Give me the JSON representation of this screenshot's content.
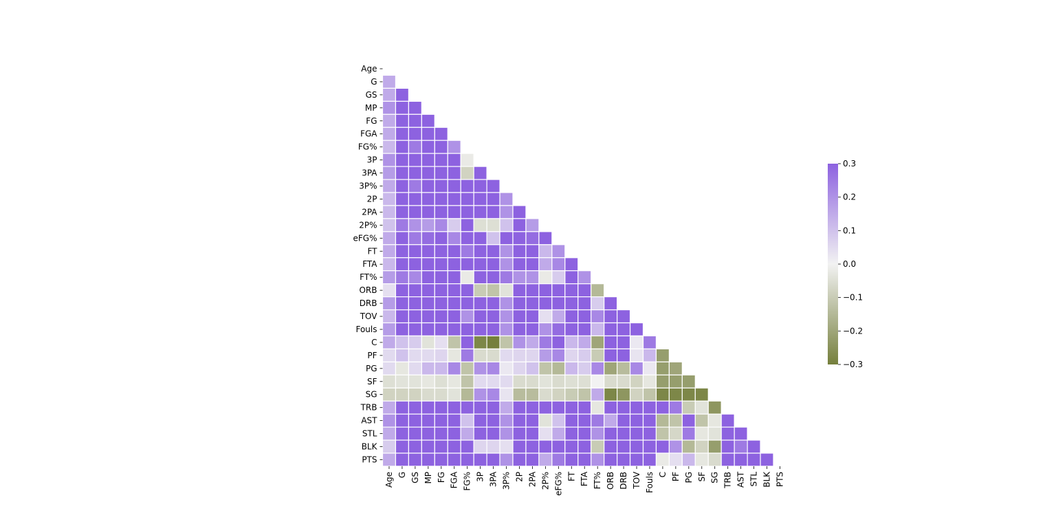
{
  "chart_data": {
    "type": "heatmap",
    "title": "",
    "mask": "upper-triangle",
    "labels": [
      "Age",
      "G",
      "GS",
      "MP",
      "FG",
      "FGA",
      "FG%",
      "3P",
      "3PA",
      "3P%",
      "2P",
      "2PA",
      "2P%",
      "eFG%",
      "FT",
      "FTA",
      "FT%",
      "ORB",
      "DRB",
      "TOV",
      "Fouls",
      "C",
      "PF",
      "PG",
      "SF",
      "SG",
      "TRB",
      "AST",
      "STL",
      "BLK",
      "PTS"
    ],
    "vmin": -0.3,
    "vmax": 0.3,
    "colormap": {
      "low": "#757f3c",
      "mid": "#f2f2f2",
      "high": "#8d62e0"
    },
    "colorbar": {
      "ticks": [
        "0.3",
        "0.2",
        "0.1",
        "0.0",
        "−0.1",
        "−0.2",
        "−0.3"
      ],
      "tick_values": [
        0.3,
        0.2,
        0.1,
        0.0,
        -0.1,
        -0.2,
        -0.3
      ]
    },
    "matrix": [
      [],
      [
        0.15
      ],
      [
        0.15,
        0.9
      ],
      [
        0.2,
        0.85,
        0.95
      ],
      [
        0.15,
        0.8,
        0.9,
        0.95
      ],
      [
        0.15,
        0.8,
        0.9,
        0.95,
        0.98
      ],
      [
        0.12,
        0.4,
        0.25,
        0.3,
        0.35,
        0.2
      ],
      [
        0.2,
        0.5,
        0.5,
        0.55,
        0.5,
        0.55,
        -0.02
      ],
      [
        0.18,
        0.5,
        0.5,
        0.55,
        0.5,
        0.55,
        -0.08,
        0.95
      ],
      [
        0.15,
        0.35,
        0.25,
        0.32,
        0.33,
        0.35,
        0.4,
        0.4,
        0.35
      ],
      [
        0.12,
        0.75,
        0.85,
        0.9,
        0.95,
        0.93,
        0.4,
        0.4,
        0.4,
        0.2
      ],
      [
        0.12,
        0.75,
        0.85,
        0.9,
        0.94,
        0.95,
        0.3,
        0.4,
        0.4,
        0.2,
        0.98
      ],
      [
        0.1,
        0.25,
        0.2,
        0.18,
        0.22,
        0.08,
        0.6,
        -0.05,
        -0.05,
        0.1,
        0.3,
        0.18
      ],
      [
        0.15,
        0.35,
        0.25,
        0.28,
        0.32,
        0.22,
        0.6,
        0.3,
        0.1,
        0.4,
        0.35,
        0.28,
        0.5
      ],
      [
        0.15,
        0.65,
        0.7,
        0.75,
        0.8,
        0.8,
        0.25,
        0.35,
        0.35,
        0.2,
        0.8,
        0.8,
        0.12,
        0.2
      ],
      [
        0.12,
        0.6,
        0.7,
        0.75,
        0.8,
        0.8,
        0.3,
        0.32,
        0.32,
        0.2,
        0.8,
        0.8,
        0.15,
        0.22,
        0.95
      ],
      [
        0.18,
        0.25,
        0.22,
        0.32,
        0.32,
        0.35,
        -0.02,
        0.4,
        0.4,
        0.25,
        0.2,
        0.2,
        -0.02,
        0.08,
        0.4,
        0.2
      ],
      [
        0.04,
        0.4,
        0.45,
        0.4,
        0.45,
        0.38,
        0.5,
        -0.1,
        -0.12,
        -0.04,
        0.55,
        0.55,
        0.4,
        0.3,
        0.4,
        0.45,
        -0.15
      ],
      [
        0.18,
        0.55,
        0.65,
        0.65,
        0.7,
        0.65,
        0.5,
        0.35,
        0.35,
        0.2,
        0.7,
        0.7,
        0.3,
        0.3,
        0.65,
        0.7,
        0.08,
        0.85
      ],
      [
        0.12,
        0.55,
        0.65,
        0.65,
        0.75,
        0.75,
        0.2,
        0.4,
        0.4,
        0.2,
        0.75,
        0.75,
        0.04,
        0.15,
        0.7,
        0.7,
        0.22,
        0.4,
        0.7
      ],
      [
        0.18,
        0.6,
        0.65,
        0.65,
        0.7,
        0.65,
        0.4,
        0.35,
        0.35,
        0.2,
        0.7,
        0.65,
        0.2,
        0.28,
        0.65,
        0.65,
        0.12,
        0.5,
        0.65,
        0.7
      ],
      [
        0.15,
        0.1,
        0.08,
        -0.04,
        0.04,
        -0.12,
        0.4,
        -0.28,
        -0.3,
        -0.12,
        0.2,
        0.15,
        0.25,
        0.3,
        0.12,
        0.15,
        -0.2,
        0.6,
        0.55,
        0.02,
        0.25
      ],
      [
        0.05,
        0.1,
        0.05,
        0.05,
        0.06,
        -0.03,
        0.25,
        -0.06,
        -0.06,
        0.05,
        0.06,
        0.06,
        0.18,
        0.22,
        0.06,
        0.08,
        -0.1,
        0.3,
        0.3,
        0.03,
        0.12,
        -0.22
      ],
      [
        0.05,
        -0.03,
        0.05,
        0.12,
        0.12,
        0.22,
        -0.12,
        0.2,
        0.22,
        0.02,
        0.06,
        0.1,
        -0.12,
        -0.15,
        0.12,
        0.08,
        0.22,
        -0.2,
        -0.14,
        0.22,
        0.02,
        -0.22,
        -0.2
      ],
      [
        -0.05,
        -0.04,
        -0.04,
        -0.03,
        -0.05,
        -0.03,
        -0.12,
        0.05,
        0.05,
        0.05,
        -0.06,
        -0.06,
        -0.04,
        -0.06,
        -0.05,
        -0.05,
        0.0,
        -0.06,
        -0.06,
        -0.08,
        -0.03,
        -0.22,
        -0.22,
        -0.22
      ],
      [
        -0.08,
        -0.08,
        -0.08,
        -0.06,
        -0.06,
        -0.04,
        -0.15,
        0.2,
        0.22,
        0.03,
        -0.14,
        -0.14,
        -0.06,
        -0.08,
        -0.1,
        -0.12,
        0.15,
        -0.28,
        -0.24,
        -0.08,
        -0.12,
        -0.28,
        -0.28,
        -0.28,
        -0.28
      ],
      [
        0.15,
        0.55,
        0.65,
        0.6,
        0.65,
        0.6,
        0.5,
        0.3,
        0.3,
        0.15,
        0.65,
        0.65,
        0.35,
        0.3,
        0.6,
        0.65,
        -0.03,
        0.9,
        0.95,
        0.6,
        0.65,
        0.5,
        0.25,
        -0.1,
        -0.04,
        -0.24
      ],
      [
        0.2,
        0.5,
        0.6,
        0.65,
        0.65,
        0.65,
        0.1,
        0.4,
        0.4,
        0.2,
        0.6,
        0.65,
        -0.04,
        0.1,
        0.6,
        0.6,
        0.25,
        0.15,
        0.4,
        0.75,
        0.4,
        -0.15,
        -0.12,
        0.4,
        -0.12,
        -0.03,
        0.3
      ],
      [
        0.15,
        0.6,
        0.65,
        0.7,
        0.7,
        0.7,
        0.15,
        0.4,
        0.4,
        0.2,
        0.65,
        0.65,
        0.04,
        0.15,
        0.6,
        0.6,
        0.2,
        0.3,
        0.5,
        0.7,
        0.5,
        -0.12,
        -0.07,
        0.25,
        -0.03,
        -0.04,
        0.45,
        0.7
      ],
      [
        0.08,
        0.4,
        0.45,
        0.45,
        0.45,
        0.4,
        0.4,
        0.06,
        0.06,
        0.04,
        0.5,
        0.5,
        0.35,
        0.3,
        0.45,
        0.5,
        -0.1,
        0.7,
        0.65,
        0.4,
        0.5,
        0.4,
        0.2,
        -0.15,
        -0.08,
        -0.22,
        0.7,
        0.25,
        0.35
      ],
      [
        0.15,
        0.7,
        0.75,
        0.8,
        0.98,
        0.95,
        0.3,
        0.5,
        0.5,
        0.2,
        0.9,
        0.9,
        0.15,
        0.25,
        0.85,
        0.85,
        0.2,
        0.4,
        0.65,
        0.8,
        0.65,
        -0.02,
        0.04,
        0.12,
        -0.03,
        -0.06,
        0.65,
        0.65,
        0.65,
        0.4
      ]
    ]
  }
}
